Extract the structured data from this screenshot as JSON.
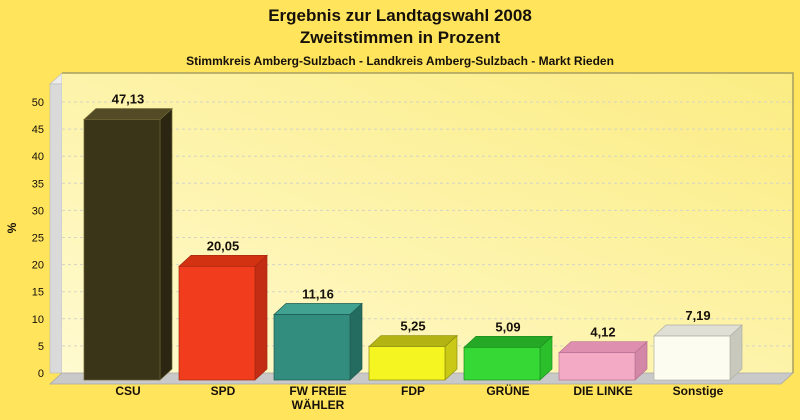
{
  "header": {
    "title": "Ergebnis zur Landtagswahl 2008",
    "subtitle": "Zweitstimmen in Prozent",
    "region_line": "Stimmkreis Amberg-Sulzbach - Landkreis Amberg-Sulzbach - Markt Rieden"
  },
  "chart_data": {
    "type": "bar",
    "style": "3d-column",
    "title": "Ergebnis zur Landtagswahl 2008",
    "subtitle": "Zweitstimmen in Prozent",
    "annotation": "Stimmkreis Amberg-Sulzbach - Landkreis Amberg-Sulzbach - Markt Rieden",
    "xlabel": "",
    "ylabel": "%",
    "ylim": [
      0,
      55
    ],
    "ytick_step": 5,
    "yticks": [
      0,
      5,
      10,
      15,
      20,
      25,
      30,
      35,
      40,
      45,
      50
    ],
    "grid": "horizontal-dashed",
    "legend": "none",
    "categories": [
      "CSU",
      "SPD",
      "FW FREIE WÄHLER",
      "FDP",
      "GRÜNE",
      "DIE LINKE",
      "Sonstige"
    ],
    "category_lines": [
      [
        "CSU"
      ],
      [
        "SPD"
      ],
      [
        "FW FREIE",
        "WÄHLER"
      ],
      [
        "FDP"
      ],
      [
        "GRÜNE"
      ],
      [
        "DIE LINKE"
      ],
      [
        "Sonstige"
      ]
    ],
    "values": [
      47.13,
      20.05,
      11.16,
      5.25,
      5.09,
      4.12,
      7.19
    ],
    "value_labels": [
      "47,13",
      "20,05",
      "11,16",
      "5,25",
      "5,09",
      "4,12",
      "7,19"
    ],
    "bar_colors": [
      {
        "front": "#3A3418",
        "top": "#534B26",
        "side": "#2B2612",
        "edge": "#6E6434"
      },
      {
        "front": "#F23C1E",
        "top": "#D23211",
        "side": "#C22D13",
        "edge": "#A5280F"
      },
      {
        "front": "#328D7E",
        "top": "#41A291",
        "side": "#256C60",
        "edge": "#1E5A50"
      },
      {
        "front": "#F5F522",
        "top": "#B3B314",
        "side": "#C9C916",
        "edge": "#8F8F10"
      },
      {
        "front": "#35D835",
        "top": "#25A825",
        "side": "#2BBF2B",
        "edge": "#1E8F1E"
      },
      {
        "front": "#F3AAC5",
        "top": "#DE8FB0",
        "side": "#D387A6",
        "edge": "#B86F92"
      },
      {
        "front": "#FCFCF0",
        "top": "#DFDFD5",
        "side": "#C8C8BC",
        "edge": "#AFAFA3"
      }
    ],
    "colors": {
      "page_bg": "#FFE45C",
      "plot_bg_light": "#FFFAD0",
      "plot_bg_dark": "#FBEC82",
      "wall": "#DADADA",
      "wall_bevel": "#ECECEC",
      "floor": "#C9C9C9",
      "floor_edge": "#A6A6A6",
      "grid": "#D4D4C8",
      "plot_border": "#A69F62",
      "text": "#15100a"
    }
  }
}
